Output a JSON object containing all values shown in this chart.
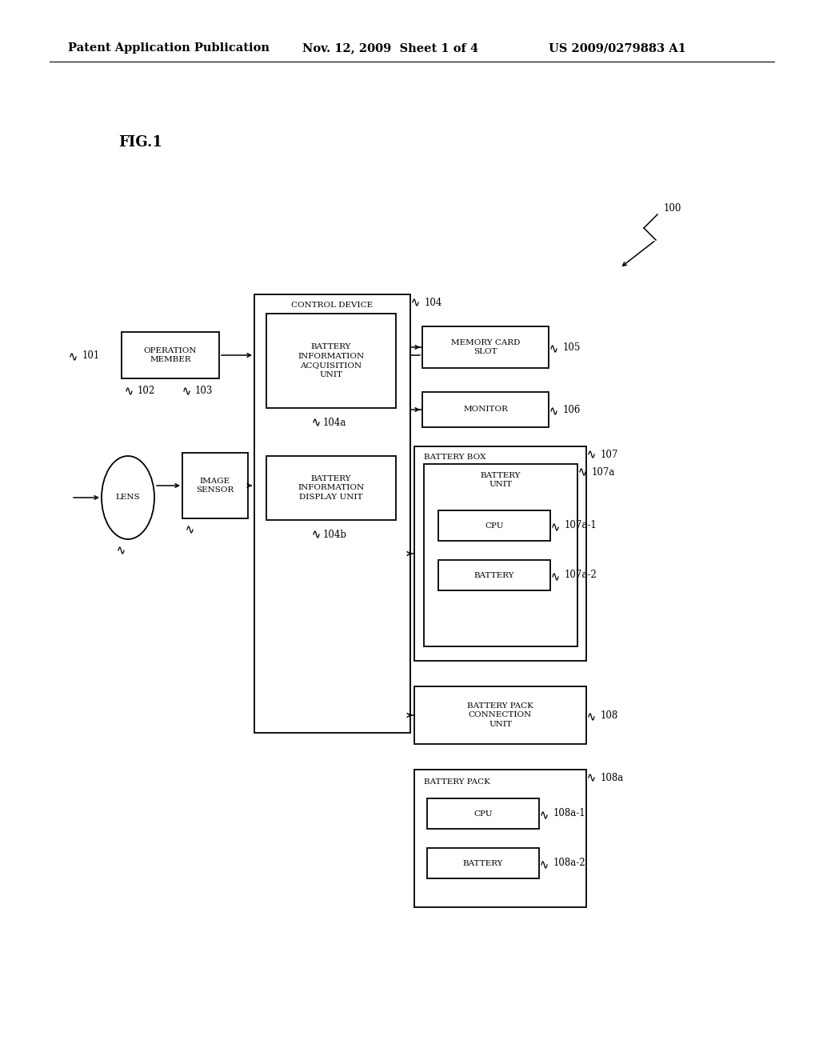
{
  "bg_color": "#ffffff",
  "header_text": "Patent Application Publication",
  "header_date": "Nov. 12, 2009  Sheet 1 of 4",
  "header_patent": "US 2009/0279883 A1",
  "fig_label": "FIG.1",
  "ref_100": "100",
  "ref_101": "101",
  "ref_102": "102",
  "ref_103": "103",
  "ref_104": "104",
  "ref_104a": "104a",
  "ref_104b": "104b",
  "ref_105": "105",
  "ref_106": "106",
  "ref_107": "107",
  "ref_107a": "107a",
  "ref_107a1": "107a-1",
  "ref_107a2": "107a-2",
  "ref_108": "108",
  "ref_108a": "108a",
  "ref_108a1": "108a-1",
  "ref_108a2": "108a-2",
  "label_control_device": "CONTROL DEVICE",
  "label_biau": "BATTERY\nINFORMATION\nACQUISITION\nUNIT",
  "label_bidu": "BATTERY\nINFORMATION\nDISPLAY UNIT",
  "label_operation_member": "OPERATION\nMEMBER",
  "label_lens": "LENS",
  "label_image_sensor": "IMAGE\nSENSOR",
  "label_memory_card_slot": "MEMORY CARD\nSLOT",
  "label_monitor": "MONITOR",
  "label_battery_box": "BATTERY BOX",
  "label_battery_unit": "BATTERY\nUNIT",
  "label_cpu1": "CPU",
  "label_battery1": "BATTERY",
  "label_bpcu": "BATTERY PACK\nCONNECTION\nUNIT",
  "label_battery_pack": "BATTERY PACK",
  "label_cpu2": "CPU",
  "label_battery2": "BATTERY",
  "font_size_header": 10.5,
  "font_size_fig": 13,
  "font_size_label": 7.5,
  "font_size_ref": 8.5
}
